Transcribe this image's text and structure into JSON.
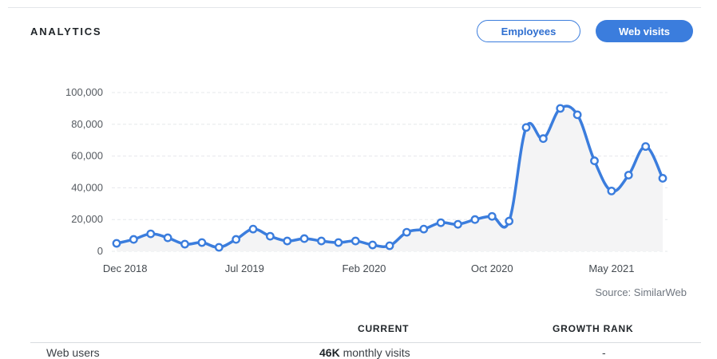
{
  "header": {
    "title": "ANALYTICS",
    "tabs": [
      {
        "label": "Employees",
        "active": false
      },
      {
        "label": "Web visits",
        "active": true
      }
    ]
  },
  "colors": {
    "accent": "#3b7ddd",
    "line": "#3b7ddd",
    "area_fill": "#f4f4f5",
    "grid": "#e6e8eb"
  },
  "chart_data": {
    "type": "line",
    "title": "",
    "xlabel": "",
    "ylabel": "",
    "ylim": [
      0,
      100000
    ],
    "yticks": [
      "0",
      "20,000",
      "40,000",
      "60,000",
      "80,000",
      "100,000"
    ],
    "ytick_values": [
      0,
      20000,
      40000,
      60000,
      80000,
      100000
    ],
    "xtick_labels": [
      "Dec 2018",
      "Jul 2019",
      "Feb 2020",
      "Oct 2020",
      "May 2021"
    ],
    "xtick_positions": [
      0.5,
      7.5,
      14.5,
      22,
      29
    ],
    "grid": true,
    "series": [
      {
        "name": "",
        "values": [
          5000,
          7500,
          11000,
          8500,
          4500,
          5500,
          2500,
          7500,
          14000,
          9500,
          6500,
          8000,
          6500,
          5500,
          6500,
          4000,
          3500,
          12000,
          14000,
          18000,
          17000,
          20000,
          22000,
          19000,
          78000,
          71000,
          90000,
          86000,
          57000,
          38000,
          48000,
          66000,
          46000
        ]
      }
    ]
  },
  "source": "Source: SimilarWeb",
  "table": {
    "headers": [
      "CURRENT",
      "GROWTH RANK"
    ],
    "rows": [
      {
        "label": "Web users",
        "current_value": "46K",
        "current_unit": "monthly visits",
        "growth_rank": "-"
      }
    ]
  }
}
